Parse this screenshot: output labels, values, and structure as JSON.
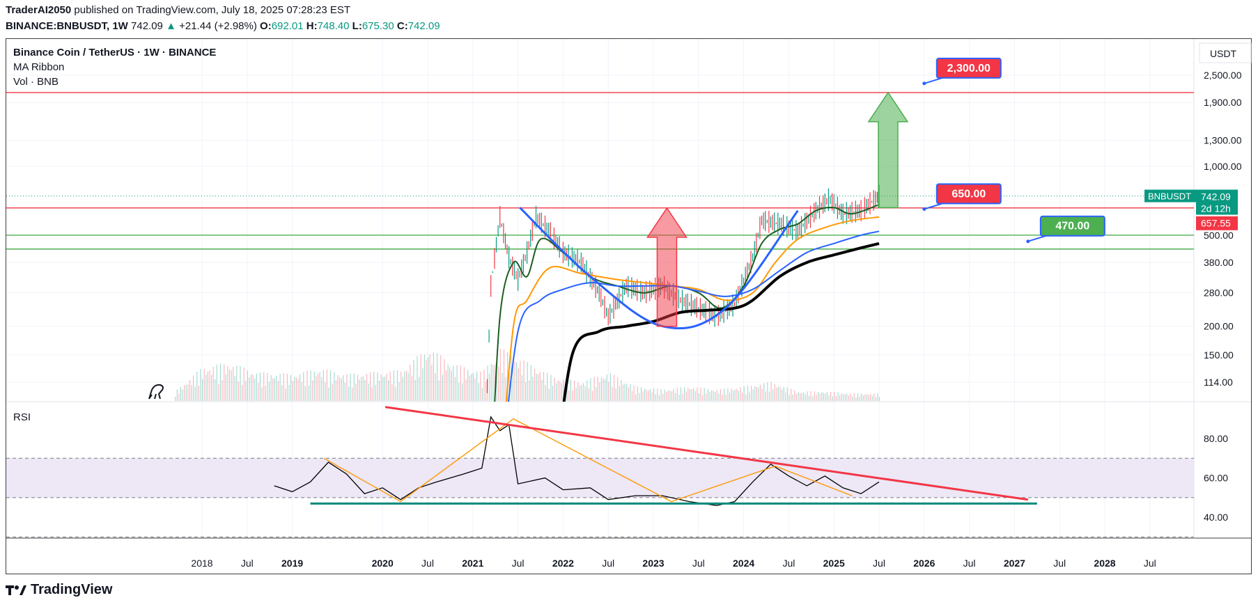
{
  "header": {
    "author": "TraderAI2050",
    "published_text": "published on TradingView.com, July 18, 2025 07:28:23 EST",
    "symbol": "BINANCE:BNBUSDT, 1W",
    "last": "742.09",
    "change": "+21.44 (+2.98%)",
    "o_label": "O:",
    "o": "692.01",
    "h_label": "H:",
    "h": "748.40",
    "l_label": "L:",
    "l": "675.30",
    "c_label": "C:",
    "c": "742.09"
  },
  "legend": {
    "title": "Binance Coin / TetherUS · 1W · BINANCE",
    "ma": "MA Ribbon",
    "vol": "Vol · BNB",
    "rsi": "RSI"
  },
  "footer": {
    "brand": "TradingView"
  },
  "colors": {
    "up": "#089981",
    "down": "#f23645",
    "ma_green": "#1b5e20",
    "ma_orange": "#ff9800",
    "ma_blue": "#2962ff",
    "ma_black": "#000000",
    "rsi_band": "#ede7f6",
    "trend_red": "#f23645",
    "support_green": "#4caf50",
    "rsi_base": "#00897b"
  },
  "chart_data": [
    {
      "type": "line",
      "title": "Binance Coin / TetherUS · 1W · BINANCE",
      "currency": "USDT",
      "scale": "log",
      "y_ticks": [
        "2,500.00",
        "1,900.00",
        "1,300.00",
        "1,000.00",
        "500.00",
        "380.00",
        "280.00",
        "200.00",
        "150.00",
        "114.00"
      ],
      "y_tick_values": [
        2500,
        1900,
        1300,
        1000,
        500,
        380,
        280,
        200,
        150,
        114
      ],
      "x_labels": [
        "2018",
        "Jul",
        "2019",
        "2020",
        "Jul",
        "2021",
        "Jul",
        "2022",
        "Jul",
        "2023",
        "Jul",
        "2024",
        "Jul",
        "2025",
        "Jul",
        "2026",
        "Jul",
        "2027",
        "Jul",
        "2028",
        "Jul"
      ],
      "bold_years": [
        "2019",
        "2020",
        "2021",
        "2022",
        "2023",
        "2024",
        "2025",
        "2026",
        "2027",
        "2028"
      ],
      "x_year_positions": [
        2018,
        2018.5,
        2019,
        2020,
        2020.5,
        2021,
        2021.5,
        2022,
        2022.5,
        2023,
        2023.5,
        2024,
        2024.5,
        2025,
        2025.5,
        2026,
        2026.5,
        2027,
        2027.5,
        2028,
        2028.5
      ],
      "price_tag": {
        "symbol": "BNBUSDT",
        "value": "742.09",
        "countdown": "2d 12h",
        "level_value": 742.09
      },
      "resistance_tag": {
        "value": "657.55",
        "level_value": 657.55
      },
      "levels": [
        {
          "value": 2100,
          "color": "#f23645"
        },
        {
          "value": 657.55,
          "color": "#f23645"
        },
        {
          "value": 500,
          "color": "#4caf50"
        },
        {
          "value": 435,
          "color": "#4caf50"
        }
      ],
      "callouts": [
        {
          "label": "2,300.00",
          "color": "#f23645",
          "anchor_year": 2026.0,
          "anchor_value": 2300
        },
        {
          "label": "650.00",
          "color": "#f23645",
          "anchor_year": 2026.0,
          "anchor_value": 650
        },
        {
          "label": "470.00",
          "color": "#4caf50",
          "anchor_year": 2027.15,
          "anchor_value": 470
        }
      ],
      "price_path": {
        "years": [
          2021.12,
          2021.2,
          2021.3,
          2021.4,
          2021.5,
          2021.6,
          2021.7,
          2021.85,
          2022.0,
          2022.2,
          2022.4,
          2022.5,
          2022.7,
          2022.9,
          2023.1,
          2023.3,
          2023.5,
          2023.7,
          2023.9,
          2024.1,
          2024.2,
          2024.4,
          2024.6,
          2024.8,
          2024.95,
          2025.1,
          2025.3,
          2025.5
        ],
        "values": [
          40,
          300,
          600,
          400,
          320,
          420,
          600,
          520,
          420,
          380,
          280,
          220,
          300,
          280,
          300,
          260,
          240,
          220,
          250,
          400,
          580,
          560,
          520,
          640,
          720,
          620,
          640,
          742
        ]
      },
      "ma_ribbon": [
        {
          "name": "MA short",
          "color": "#1b5e20",
          "years": [
            2021.2,
            2021.3,
            2021.45,
            2021.6,
            2021.75,
            2022.0,
            2022.3,
            2022.6,
            2022.9,
            2023.2,
            2023.5,
            2023.75,
            2024.0,
            2024.2,
            2024.4,
            2024.6,
            2024.8,
            2025.0,
            2025.2,
            2025.5
          ],
          "values": [
            40,
            220,
            380,
            330,
            480,
            420,
            330,
            300,
            280,
            300,
            280,
            240,
            300,
            460,
            530,
            560,
            640,
            660,
            620,
            680
          ]
        },
        {
          "name": "MA mid",
          "color": "#ff9800",
          "years": [
            2021.3,
            2021.45,
            2021.6,
            2021.85,
            2022.2,
            2022.6,
            2022.9,
            2023.2,
            2023.5,
            2023.8,
            2024.1,
            2024.35,
            2024.6,
            2024.9,
            2025.2,
            2025.5
          ],
          "values": [
            40,
            200,
            260,
            360,
            340,
            320,
            310,
            300,
            290,
            260,
            280,
            380,
            480,
            540,
            580,
            600
          ]
        },
        {
          "name": "MA long",
          "color": "#2962ff",
          "years": [
            2021.3,
            2021.5,
            2021.75,
            2022.0,
            2022.3,
            2022.6,
            2022.9,
            2023.2,
            2023.5,
            2023.8,
            2024.1,
            2024.4,
            2024.7,
            2025.0,
            2025.3,
            2025.5
          ],
          "values": [
            40,
            190,
            260,
            290,
            310,
            300,
            300,
            300,
            285,
            270,
            290,
            350,
            420,
            460,
            500,
            520
          ]
        },
        {
          "name": "MA longest",
          "color": "#000000",
          "years": [
            2021.9,
            2022.1,
            2022.4,
            2022.7,
            2023.0,
            2023.3,
            2023.6,
            2023.9,
            2024.1,
            2024.4,
            2024.7,
            2025.0,
            2025.3,
            2025.5
          ],
          "values": [
            40,
            150,
            190,
            200,
            210,
            230,
            235,
            240,
            260,
            330,
            380,
            410,
            440,
            460
          ]
        }
      ],
      "drawings": {
        "u_curve": {
          "years": [
            2021.52,
            2022.3,
            2023.1,
            2023.8,
            2024.6
          ],
          "values": [
            660,
            330,
            200,
            240,
            640
          ]
        },
        "red_arrow": {
          "year": 2023.15,
          "base": 200,
          "tip": 657
        },
        "green_arrow": {
          "year": 2025.6,
          "base": 660,
          "tip": 2100
        }
      },
      "volume": {
        "years": [
          2017.7,
          2018.0,
          2018.3,
          2018.6,
          2019.0,
          2019.3,
          2019.6,
          2019.9,
          2020.2,
          2020.5,
          2020.8,
          2021.1,
          2021.3,
          2021.6,
          2021.9,
          2022.2,
          2022.5,
          2022.8,
          2023.1,
          2023.4,
          2023.7,
          2024.0,
          2024.3,
          2024.6,
          2024.9,
          2025.2,
          2025.5
        ],
        "values": [
          10,
          35,
          40,
          30,
          28,
          34,
          28,
          30,
          32,
          55,
          38,
          30,
          55,
          40,
          25,
          20,
          30,
          15,
          12,
          15,
          12,
          15,
          20,
          10,
          10,
          8,
          8
        ]
      }
    },
    {
      "type": "line",
      "title": "RSI",
      "ylim": [
        30,
        100
      ],
      "y_ticks": [
        "80.00",
        "60.00",
        "40.00"
      ],
      "y_tick_values": [
        80,
        60,
        40
      ],
      "band": [
        50,
        70
      ],
      "rsi_path": {
        "years": [
          2018.8,
          2019.0,
          2019.2,
          2019.4,
          2019.6,
          2019.8,
          2020.0,
          2020.2,
          2020.4,
          2020.6,
          2020.9,
          2021.1,
          2021.2,
          2021.3,
          2021.4,
          2021.5,
          2021.8,
          2022.0,
          2022.3,
          2022.5,
          2022.8,
          2023.1,
          2023.4,
          2023.7,
          2023.9,
          2024.1,
          2024.3,
          2024.5,
          2024.7,
          2024.9,
          2025.1,
          2025.3,
          2025.5
        ],
        "values": [
          56,
          53,
          58,
          68,
          62,
          52,
          55,
          49,
          55,
          58,
          62,
          65,
          91,
          84,
          87,
          57,
          60,
          54,
          55,
          49,
          51,
          51,
          48,
          46,
          48,
          58,
          67,
          61,
          56,
          61,
          55,
          52,
          58
        ]
      },
      "zigzag": {
        "years": [
          2019.35,
          2020.2,
          2021.45,
          2023.2,
          2024.35,
          2025.2
        ],
        "values": [
          70,
          48,
          90,
          48,
          66,
          51
        ]
      },
      "trendline": {
        "years": [
          2020.03,
          2027.15
        ],
        "values": [
          96,
          49
        ]
      },
      "baseline": {
        "years": [
          2019.2,
          2027.25
        ],
        "values": [
          47,
          47
        ]
      }
    }
  ]
}
